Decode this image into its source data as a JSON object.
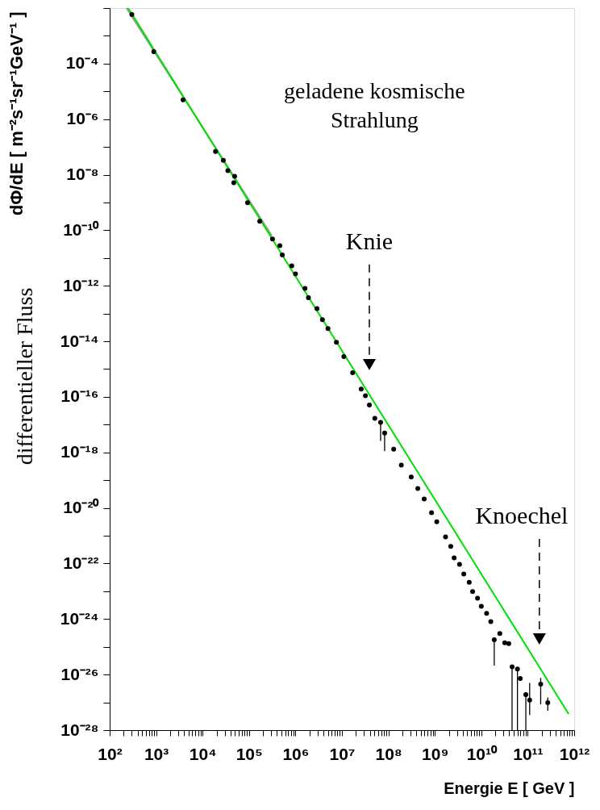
{
  "chart_data": {
    "type": "scatter",
    "xlabel": "Energie E   [ GeV ]",
    "ylabel": "dΦ/dE  [ m⁻²s⁻¹sr⁻¹GeV⁻¹ ]",
    "log": "xy",
    "grid": false,
    "xlim": [
      100.0,
      1000000000000.0
    ],
    "ylim": [
      1e-28,
      0.01
    ],
    "xticks": [
      {
        "value": 100.0,
        "label": "10²"
      },
      {
        "value": 200.0,
        "label": null
      },
      {
        "value": 300.0,
        "label": null
      },
      {
        "value": 400.0,
        "label": null
      },
      {
        "value": 500.0,
        "label": null
      },
      {
        "value": 600.0,
        "label": null
      },
      {
        "value": 700.0,
        "label": null
      },
      {
        "value": 800.0,
        "label": null
      },
      {
        "value": 900.0,
        "label": null
      },
      {
        "value": 1000.0,
        "label": "10³"
      },
      {
        "value": 2000.0,
        "label": null
      },
      {
        "value": 3000.0,
        "label": null
      },
      {
        "value": 4000.0,
        "label": null
      },
      {
        "value": 5000.0,
        "label": null
      },
      {
        "value": 6000.0,
        "label": null
      },
      {
        "value": 7000.0,
        "label": null
      },
      {
        "value": 8000.0,
        "label": null
      },
      {
        "value": 9000.0,
        "label": null
      },
      {
        "value": 10000.0,
        "label": "10⁴"
      },
      {
        "value": 20000.0,
        "label": null
      },
      {
        "value": 30000.0,
        "label": null
      },
      {
        "value": 40000.0,
        "label": null
      },
      {
        "value": 50000.0,
        "label": null
      },
      {
        "value": 60000.0,
        "label": null
      },
      {
        "value": 70000.0,
        "label": null
      },
      {
        "value": 80000.0,
        "label": null
      },
      {
        "value": 90000.0,
        "label": null
      },
      {
        "value": 100000.0,
        "label": "10⁵"
      },
      {
        "value": 200000.0,
        "label": null
      },
      {
        "value": 300000.0,
        "label": null
      },
      {
        "value": 400000.0,
        "label": null
      },
      {
        "value": 500000.0,
        "label": null
      },
      {
        "value": 600000.0,
        "label": null
      },
      {
        "value": 700000.0,
        "label": null
      },
      {
        "value": 800000.0,
        "label": null
      },
      {
        "value": 900000.0,
        "label": null
      },
      {
        "value": 1000000.0,
        "label": "10⁶"
      },
      {
        "value": 2000000.0,
        "label": null
      },
      {
        "value": 3000000.0,
        "label": null
      },
      {
        "value": 4000000.0,
        "label": null
      },
      {
        "value": 5000000.0,
        "label": null
      },
      {
        "value": 6000000.0,
        "label": null
      },
      {
        "value": 7000000.0,
        "label": null
      },
      {
        "value": 8000000.0,
        "label": null
      },
      {
        "value": 9000000.0,
        "label": null
      },
      {
        "value": 10000000.0,
        "label": "10⁷"
      },
      {
        "value": 20000000.0,
        "label": null
      },
      {
        "value": 30000000.0,
        "label": null
      },
      {
        "value": 40000000.0,
        "label": null
      },
      {
        "value": 50000000.0,
        "label": null
      },
      {
        "value": 60000000.0,
        "label": null
      },
      {
        "value": 70000000.0,
        "label": null
      },
      {
        "value": 80000000.0,
        "label": null
      },
      {
        "value": 90000000.0,
        "label": null
      },
      {
        "value": 100000000.0,
        "label": "10⁸"
      },
      {
        "value": 200000000.0,
        "label": null
      },
      {
        "value": 300000000.0,
        "label": null
      },
      {
        "value": 400000000.0,
        "label": null
      },
      {
        "value": 500000000.0,
        "label": null
      },
      {
        "value": 600000000.0,
        "label": null
      },
      {
        "value": 700000000.0,
        "label": null
      },
      {
        "value": 800000000.0,
        "label": null
      },
      {
        "value": 900000000.0,
        "label": null
      },
      {
        "value": 1000000000.0,
        "label": "10⁹"
      },
      {
        "value": 2000000000.0,
        "label": null
      },
      {
        "value": 3000000000.0,
        "label": null
      },
      {
        "value": 4000000000.0,
        "label": null
      },
      {
        "value": 5000000000.0,
        "label": null
      },
      {
        "value": 6000000000.0,
        "label": null
      },
      {
        "value": 7000000000.0,
        "label": null
      },
      {
        "value": 8000000000.0,
        "label": null
      },
      {
        "value": 9000000000.0,
        "label": null
      },
      {
        "value": 10000000000.0,
        "label": "10¹⁰"
      },
      {
        "value": 20000000000.0,
        "label": null
      },
      {
        "value": 30000000000.0,
        "label": null
      },
      {
        "value": 40000000000.0,
        "label": null
      },
      {
        "value": 50000000000.0,
        "label": null
      },
      {
        "value": 60000000000.0,
        "label": null
      },
      {
        "value": 70000000000.0,
        "label": null
      },
      {
        "value": 80000000000.0,
        "label": null
      },
      {
        "value": 90000000000.0,
        "label": null
      },
      {
        "value": 100000000000.0,
        "label": "10¹¹"
      },
      {
        "value": 200000000000.0,
        "label": null
      },
      {
        "value": 300000000000.0,
        "label": null
      },
      {
        "value": 400000000000.0,
        "label": null
      },
      {
        "value": 500000000000.0,
        "label": null
      },
      {
        "value": 600000000000.0,
        "label": null
      },
      {
        "value": 700000000000.0,
        "label": null
      },
      {
        "value": 800000000000.0,
        "label": null
      },
      {
        "value": 900000000000.0,
        "label": null
      },
      {
        "value": 1000000000000.0,
        "label": "10¹²"
      }
    ],
    "yticks": [
      {
        "value": 0.01,
        "label": null
      },
      {
        "value": 0.001,
        "label": null
      },
      {
        "value": 0.0001,
        "label": "10⁻⁴"
      },
      {
        "value": 1e-05,
        "label": null
      },
      {
        "value": 1e-06,
        "label": "10⁻⁶"
      },
      {
        "value": 1e-07,
        "label": null
      },
      {
        "value": 1e-08,
        "label": "10⁻⁸"
      },
      {
        "value": 1e-09,
        "label": null
      },
      {
        "value": 1e-10,
        "label": "10⁻¹⁰"
      },
      {
        "value": 1e-11,
        "label": null
      },
      {
        "value": 1e-12,
        "label": "10⁻¹²"
      },
      {
        "value": 1e-13,
        "label": null
      },
      {
        "value": 1e-14,
        "label": "10⁻¹⁴"
      },
      {
        "value": 1e-15,
        "label": null
      },
      {
        "value": 1e-16,
        "label": "10⁻¹⁶"
      },
      {
        "value": 1e-17,
        "label": null
      },
      {
        "value": 1e-18,
        "label": "10⁻¹⁸"
      },
      {
        "value": 1e-19,
        "label": null
      },
      {
        "value": 1e-20,
        "label": "10⁻²⁰"
      },
      {
        "value": 1e-21,
        "label": null
      },
      {
        "value": 1e-22,
        "label": "10⁻²²"
      },
      {
        "value": 1e-23,
        "label": null
      },
      {
        "value": 1e-24,
        "label": "10⁻²⁴"
      },
      {
        "value": 1e-25,
        "label": null
      },
      {
        "value": 1e-26,
        "label": "10⁻²⁶"
      },
      {
        "value": 1e-27,
        "label": null
      },
      {
        "value": 1e-28,
        "label": "10⁻²⁸"
      }
    ],
    "annotations": [
      "geladene kosmische\nStrahlung",
      "differentieller Fluss",
      "Knie",
      "Knoechel"
    ],
    "series": [
      {
        "type": "line",
        "color": "#999999",
        "x": [
          230.0,
          310000.0
        ],
        "values": [
          0.01,
          6.3e-11
        ]
      },
      {
        "type": "line",
        "color": "#00e000",
        "x": [
          250.0,
          760000000000.0
        ],
        "values": [
          0.01,
          3.8e-28
        ]
      },
      {
        "marker": "circle",
        "color": "#000000",
        "x": [
          300.0,
          890.0,
          3800.0,
          19000.0,
          28000.0,
          35000.0,
          47000.0,
          49000.0,
          93000.0,
          170000.0,
          320000.0,
          460000.0,
          520000.0,
          830000.0,
          1000000.0,
          1600000.0,
          1900000.0,
          2900000.0,
          3800000.0,
          5000000.0,
          7600000.0,
          11000000.0,
          17000000.0,
          26000000.0,
          32000000.0,
          39000000.0,
          51000000.0,
          68000000.0,
          83000000.0,
          130000000.0,
          190000000.0,
          310000000.0,
          430000000.0,
          590000000.0,
          850000000.0,
          1100000000.0,
          1700000000.0,
          2200000000.0,
          2600000000.0,
          3400000000.0,
          4200000000.0,
          5500000000.0,
          6500000000.0,
          8300000000.0,
          10000000000.0,
          13000000000.0,
          16000000000.0,
          19000000000.0,
          25000000000.0,
          32000000000.0,
          39000000000.0,
          46000000000.0,
          60000000000.0,
          69000000000.0,
          91000000000.0,
          110000000000.0,
          190000000000.0,
          270000000000.0
        ],
        "values": [
          0.0059,
          0.00027,
          5e-06,
          6.9e-08,
          3.3e-08,
          1.4e-08,
          5.1e-09,
          8.7e-09,
          9.8e-10,
          2.1e-10,
          4.8e-11,
          2.8e-11,
          1.3e-11,
          5.2e-12,
          2.7e-12,
          8.1e-13,
          3.7e-13,
          1.5e-13,
          6e-14,
          2.9e-14,
          9.3e-15,
          2.8e-15,
          7.4e-16,
          1.9e-16,
          1.1e-16,
          5.1e-17,
          1.7e-17,
          1.2e-17,
          5e-18,
          1.3e-18,
          3.5e-19,
          1.3e-19,
          5e-20,
          2.1e-20,
          6.8e-21,
          3.2e-21,
          9.1e-22,
          4.1e-22,
          1.6e-22,
          9.3e-23,
          4.2e-23,
          2.1e-23,
          9.8e-24,
          5.6e-24,
          2.9e-24,
          1.6e-24,
          8.1e-25,
          1.8e-25,
          3e-25,
          1.4e-25,
          1.3e-25,
          1.9e-26,
          1.6e-26,
          7.2e-27,
          1.9e-27,
          1.2e-27,
          4.5e-27,
          9.8e-28
        ],
        "errors": [
          null,
          null,
          null,
          null,
          null,
          null,
          null,
          null,
          null,
          null,
          null,
          null,
          null,
          null,
          null,
          null,
          null,
          null,
          null,
          null,
          null,
          null,
          null,
          null,
          null,
          null,
          null,
          [
            2.6e-18,
            1.2e-17
          ],
          [
            1.1e-18,
            5e-18
          ],
          null,
          null,
          null,
          null,
          null,
          null,
          null,
          null,
          null,
          null,
          null,
          null,
          null,
          null,
          null,
          null,
          null,
          null,
          [
            2.1e-26,
            1.8e-25
          ],
          null,
          null,
          null,
          [
            1e-28,
            1.9e-26
          ],
          [
            1e-28,
            1.6e-26
          ],
          null,
          [
            1e-28,
            1.9e-27
          ],
          [
            3.5e-28,
            5e-27
          ],
          [
            8.5e-28,
            7.6e-27
          ],
          [
            5e-28,
            1.5e-27
          ]
        ]
      }
    ]
  }
}
